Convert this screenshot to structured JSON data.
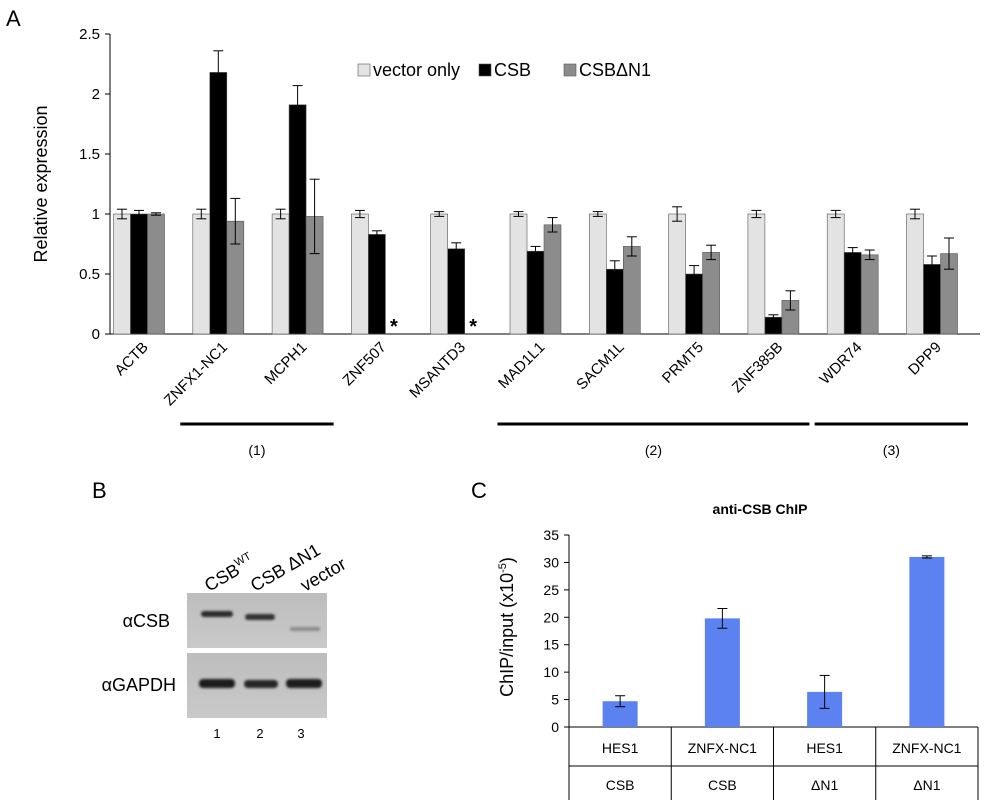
{
  "panels": {
    "a": "A",
    "b": "B",
    "c": "C"
  },
  "colors": {
    "vector_only": "#e3e3e3",
    "csb": "#000000",
    "csb_dn1": "#8c8c8c",
    "chip_bar": "#5b82f0"
  },
  "panel_a": {
    "chart_data": {
      "type": "bar",
      "ylabel": "Relative expression",
      "ylim": [
        0,
        2.5
      ],
      "yticks": [
        "0",
        "0.5",
        "1",
        "1.5",
        "2",
        "2.5"
      ],
      "categories": [
        "ACTB",
        "ZNFX1-NC1",
        "MCPH1",
        "ZNF507",
        "MSANTD3",
        "MAD1L1",
        "SACM1L",
        "PRMT5",
        "ZNF385B",
        "WDR74",
        "DPP9"
      ],
      "series": [
        {
          "name": "vector only",
          "values": [
            1.0,
            1.0,
            1.0,
            1.0,
            1.0,
            1.0,
            1.0,
            1.0,
            1.0,
            1.0,
            1.0
          ],
          "errors": [
            0.04,
            0.04,
            0.04,
            0.03,
            0.02,
            0.02,
            0.02,
            0.06,
            0.03,
            0.03,
            0.04
          ]
        },
        {
          "name": "CSB",
          "values": [
            1.0,
            2.18,
            1.91,
            0.83,
            0.71,
            0.69,
            0.54,
            0.5,
            0.14,
            0.68,
            0.58
          ],
          "errors": [
            0.03,
            0.18,
            0.16,
            0.03,
            0.05,
            0.04,
            0.07,
            0.07,
            0.02,
            0.04,
            0.07
          ]
        },
        {
          "name": "CSBΔN1",
          "values": [
            1.0,
            0.94,
            0.98,
            null,
            null,
            0.91,
            0.73,
            0.68,
            0.28,
            0.66,
            0.67
          ],
          "errors": [
            0.01,
            0.19,
            0.31,
            null,
            null,
            0.06,
            0.08,
            0.06,
            0.08,
            0.04,
            0.13
          ]
        }
      ],
      "asterisks": [
        "ZNF507",
        "MSANTD3"
      ],
      "asterisk_symbol": "*",
      "groups": [
        {
          "label": "(1)",
          "from": "ZNFX1-NC1",
          "to": "MCPH1"
        },
        {
          "label": "(2)",
          "from": "MAD1L1",
          "to": "ZNF385B"
        },
        {
          "label": "(3)",
          "from": "WDR74",
          "to": "DPP9"
        }
      ],
      "legend_position": "top-right"
    }
  },
  "panel_b": {
    "lanes": [
      {
        "label_main": "CSB",
        "label_sup": "WT"
      },
      {
        "label_main": "CSB ΔN1",
        "label_sup": ""
      },
      {
        "label_main": "vector",
        "label_sup": ""
      }
    ],
    "rows": [
      "αCSB",
      "αGAPDH"
    ],
    "lane_numbers": [
      "1",
      "2",
      "3"
    ]
  },
  "panel_c": {
    "chart_data": {
      "type": "bar",
      "title": "anti-CSB ChIP",
      "ylabel_main": "ChIP/input (x10",
      "ylabel_sup": "-5",
      "ylabel_end": ")",
      "ylim": [
        0,
        35
      ],
      "yticks": [
        "0",
        "5",
        "10",
        "15",
        "20",
        "25",
        "30",
        "35"
      ],
      "categories": [
        {
          "target": "HES1",
          "condition": "CSB"
        },
        {
          "target": "ZNFX-NC1",
          "condition": "CSB"
        },
        {
          "target": "HES1",
          "condition": "ΔN1"
        },
        {
          "target": "ZNFX-NC1",
          "condition": "ΔN1"
        }
      ],
      "values": [
        4.7,
        19.8,
        6.4,
        31.0
      ],
      "errors": [
        1.0,
        1.8,
        3.0,
        0.2
      ]
    }
  }
}
